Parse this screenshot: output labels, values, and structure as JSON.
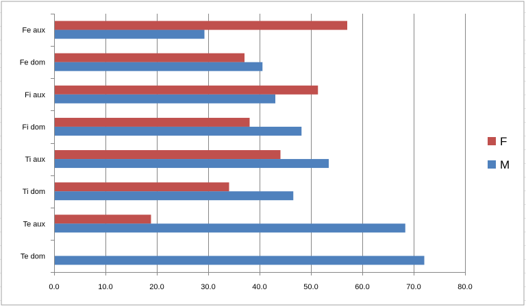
{
  "chart_data": {
    "type": "bar",
    "orientation": "horizontal",
    "categories": [
      "Fe aux",
      "Fe dom",
      "Fi aux",
      "Fi dom",
      "Ti aux",
      "Ti dom",
      "Te aux",
      "Te dom"
    ],
    "series": [
      {
        "name": "F",
        "color": "#c0504d",
        "values": [
          57.0,
          37.0,
          51.3,
          38.0,
          44.0,
          34.0,
          18.8,
          null
        ]
      },
      {
        "name": "M",
        "color": "#4f81bd",
        "values": [
          29.2,
          40.5,
          43.0,
          48.1,
          53.4,
          46.5,
          68.3,
          72.0
        ]
      }
    ],
    "x_ticks": [
      "0.0",
      "10.0",
      "20.0",
      "30.0",
      "40.0",
      "50.0",
      "60.0",
      "70.0",
      "80.0"
    ],
    "xlim": [
      0,
      80
    ],
    "grid": "vertical",
    "legend_position": "right"
  }
}
